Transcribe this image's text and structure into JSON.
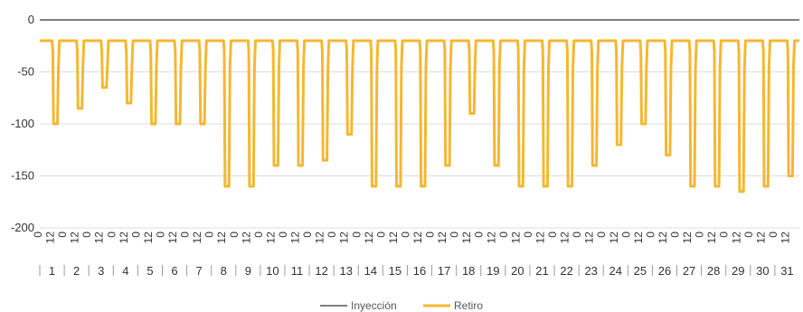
{
  "chart_data": {
    "type": "line",
    "title": "",
    "xlabel": "",
    "ylabel": "",
    "ylim": [
      -200,
      0
    ],
    "yticks": [
      0,
      -50,
      -100,
      -150,
      -200
    ],
    "grid": true,
    "legend_position": "bottom-center",
    "hour_ticks": [
      "0",
      "12"
    ],
    "days": [
      "1",
      "2",
      "3",
      "4",
      "5",
      "6",
      "7",
      "8",
      "9",
      "10",
      "11",
      "12",
      "13",
      "14",
      "15",
      "16",
      "17",
      "18",
      "19",
      "20",
      "21",
      "22",
      "23",
      "24",
      "25",
      "26",
      "27",
      "28",
      "29",
      "30",
      "31"
    ],
    "series": [
      {
        "name": "Inyección",
        "color": "#555555",
        "values": [
          0
        ]
      },
      {
        "name": "Retiro",
        "color": "#f5b731",
        "baseline": -20,
        "daily_min": [
          -100,
          -85,
          -65,
          -80,
          -100,
          -100,
          -100,
          -160,
          -160,
          -140,
          -140,
          -135,
          -110,
          -160,
          -160,
          -160,
          -140,
          -90,
          -140,
          -160,
          -160,
          -160,
          -140,
          -120,
          -100,
          -130,
          -160,
          -160,
          -165,
          -160,
          -150
        ]
      }
    ]
  }
}
